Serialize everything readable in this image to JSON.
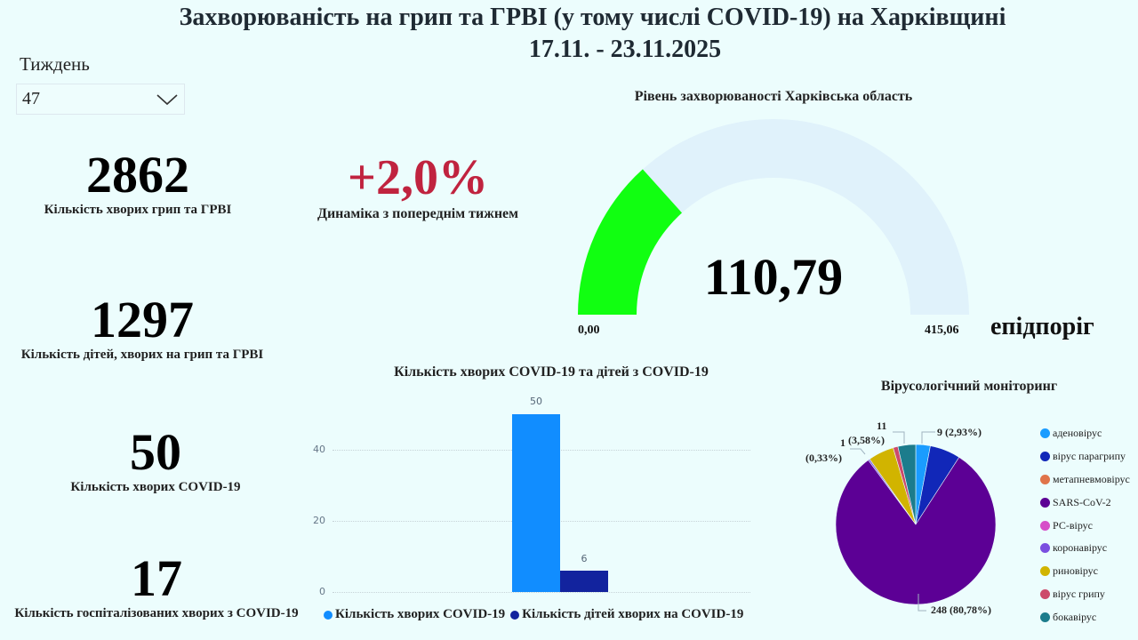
{
  "header": {
    "title": "Захворюваність на грип та ГРВІ (у тому числі COVID-19) на Харківщині",
    "period": "17.11. - 23.11.2025"
  },
  "filter": {
    "label": "Тиждень",
    "selected": "47",
    "icon": "chevron-down-icon"
  },
  "kpis": {
    "flu_total": {
      "value": "2862",
      "label": "Кількість хворих грип та ГРВІ"
    },
    "dynamics": {
      "value": "+2,0%",
      "label": "Динаміка з попереднім тижнем",
      "color": "#c0233f"
    },
    "children_flu": {
      "value": "1297",
      "label": "Кількість дітей, хворих на грип та ГРВІ"
    },
    "covid_total": {
      "value": "50",
      "label": "Кількість хворих COVID-19"
    },
    "covid_hospitalized": {
      "value": "17",
      "label": "Кількість госпіталізованих хворих з COVID-19"
    }
  },
  "gauge": {
    "title": "Рівень захворюваності Харківська область",
    "value": 110.79,
    "value_label": "110,79",
    "min": 0,
    "min_label": "0,00",
    "max": 415.06,
    "max_label": "415,06",
    "threshold_label": "епідпоріг",
    "fill_color": "#11ff11",
    "track_color": "#e0f2fb"
  },
  "chart_data": [
    {
      "type": "bar",
      "title": "Кількість хворих COVID-19 та дітей з COVID-19",
      "categories": [
        ""
      ],
      "series": [
        {
          "name": "Кількість хворих COVID-19",
          "values": [
            50
          ],
          "color": "#118dff"
        },
        {
          "name": "Кількість дітей хворих на COVID-19",
          "values": [
            6
          ],
          "color": "#12239e"
        }
      ],
      "yticks": [
        "0",
        "20",
        "40"
      ],
      "ylim": [
        0,
        52
      ],
      "grid": true,
      "legend_position": "bottom",
      "data_labels": [
        "50",
        "6"
      ]
    },
    {
      "type": "pie",
      "title": "Вірусологічний моніторинг",
      "legend_position": "right",
      "slices": [
        {
          "name": "аденовірус",
          "value": 9,
          "percent": 2.93,
          "color": "#1a9cff"
        },
        {
          "name": "вірус парагрипу",
          "value": 19,
          "percent": 6.19,
          "color": "#1127b8"
        },
        {
          "name": "метапневмовірус",
          "value": 0,
          "percent": 0,
          "color": "#e0744a"
        },
        {
          "name": "SARS-CoV-2",
          "value": 248,
          "percent": 80.78,
          "color": "#5c0095"
        },
        {
          "name": " РС-вірус",
          "value": 0,
          "percent": 0,
          "color": "#d64fc8"
        },
        {
          "name": "коронавірус",
          "value": 1,
          "percent": 0.33,
          "color": "#7a4fe0"
        },
        {
          "name": "риновірус",
          "value": 16,
          "percent": 5.21,
          "color": "#d1b400"
        },
        {
          "name": "вірус грипу",
          "value": 3,
          "percent": 0.98,
          "color": "#cc4a6a"
        },
        {
          "name": "бокавірус",
          "value": 11,
          "percent": 3.58,
          "color": "#1c7c8c"
        }
      ],
      "data_labels": {
        "adeno": "9 (2,93%)",
        "boca_count": "11",
        "boca_pct": "(3,58%)",
        "corona_count": "1",
        "corona_pct": "(0,33%)",
        "sars": "248 (80,78%)"
      }
    }
  ]
}
